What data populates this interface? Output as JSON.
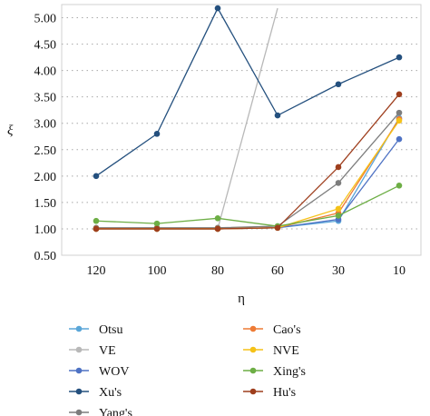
{
  "chart_data": {
    "type": "line",
    "xlabel": "η",
    "ylabel": "ξ",
    "categories": [
      "120",
      "100",
      "80",
      "60",
      "30",
      "10"
    ],
    "ylim": [
      0.5,
      5.25
    ],
    "yticks": [
      "0.50",
      "1.00",
      "1.50",
      "2.00",
      "2.50",
      "3.00",
      "3.50",
      "4.00",
      "4.50",
      "5.00"
    ],
    "grid": "horizontal dotted",
    "legend_placement": "bottom, two columns",
    "series": [
      {
        "name": "Otsu",
        "color": "#5aa6d8",
        "values": [
          1.0,
          1.0,
          1.0,
          1.02,
          1.15,
          3.1
        ]
      },
      {
        "name": "VE",
        "color": "#b8b8b8",
        "values": [
          1.0,
          1.0,
          1.0,
          5.18,
          null,
          null
        ]
      },
      {
        "name": "WOV",
        "color": "#4e72c4",
        "values": [
          1.0,
          1.0,
          1.0,
          1.02,
          1.18,
          2.7
        ]
      },
      {
        "name": "Xu's",
        "color": "#24507e",
        "values": [
          2.0,
          2.8,
          5.18,
          3.15,
          3.74,
          4.25
        ]
      },
      {
        "name": "Yang's",
        "color": "#7d7d7d",
        "values": [
          1.02,
          1.02,
          1.02,
          1.05,
          1.87,
          3.2
        ]
      },
      {
        "name": "Cao's",
        "color": "#ee7b35",
        "values": [
          1.0,
          1.0,
          1.0,
          1.02,
          1.3,
          3.08
        ]
      },
      {
        "name": "NVE",
        "color": "#f5c218",
        "values": [
          1.0,
          1.0,
          1.0,
          1.02,
          1.38,
          3.05
        ]
      },
      {
        "name": "Xing's",
        "color": "#6dae45",
        "values": [
          1.15,
          1.1,
          1.2,
          1.05,
          1.25,
          1.82
        ]
      },
      {
        "name": "Hu's",
        "color": "#9e3e1d",
        "values": [
          1.0,
          1.0,
          1.0,
          1.02,
          2.17,
          3.55
        ]
      }
    ]
  }
}
